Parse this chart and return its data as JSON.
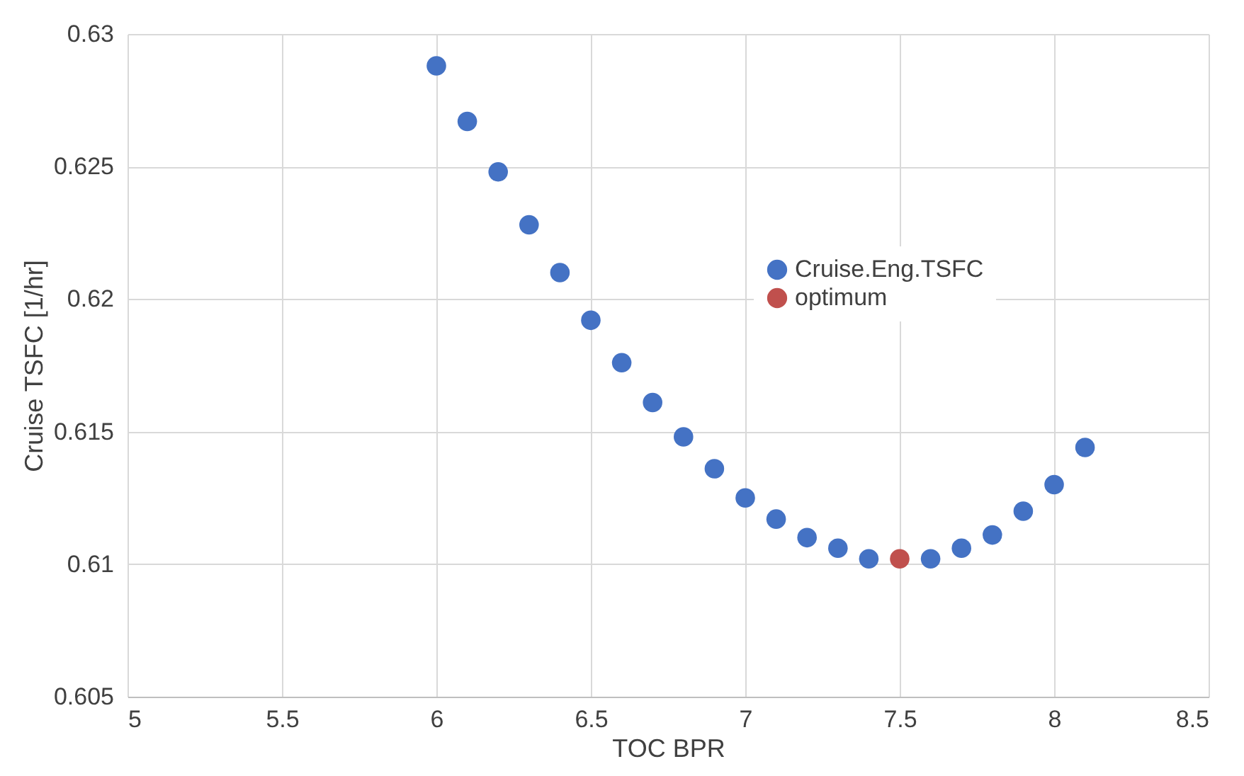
{
  "chart_data": {
    "type": "scatter",
    "xlabel": "TOC BPR",
    "ylabel": "Cruise TSFC [1/hr]",
    "xlim": [
      5,
      8.5
    ],
    "xticks": [
      5,
      5.5,
      6,
      6.5,
      7,
      7.5,
      8,
      8.5
    ],
    "ylim": [
      0.605,
      0.63
    ],
    "yticks": [
      0.605,
      0.61,
      0.615,
      0.62,
      0.625,
      0.63
    ],
    "grid": true,
    "legend": "top right",
    "marker": "circle",
    "series": [
      {
        "name": "Cruise.Eng.TSFC",
        "color": "#4472c4",
        "x": [
          6,
          6.1,
          6.2,
          6.3,
          6.4,
          6.5,
          6.6,
          6.7,
          6.8,
          6.9,
          7,
          7.1,
          7.2,
          7.3,
          7.4,
          7.6,
          7.7,
          7.8,
          7.9,
          8,
          8.1
        ],
        "values": [
          0.6288,
          0.6267,
          0.6248,
          0.6228,
          0.621,
          0.6192,
          0.6176,
          0.6161,
          0.6148,
          0.6136,
          0.6125,
          0.6117,
          0.611,
          0.6106,
          0.6102,
          0.6102,
          0.6106,
          0.6111,
          0.612,
          0.613,
          0.6144
        ]
      },
      {
        "name": "optimum",
        "color": "#c0504d",
        "x": [
          7.5
        ],
        "values": [
          0.6102
        ]
      }
    ]
  }
}
